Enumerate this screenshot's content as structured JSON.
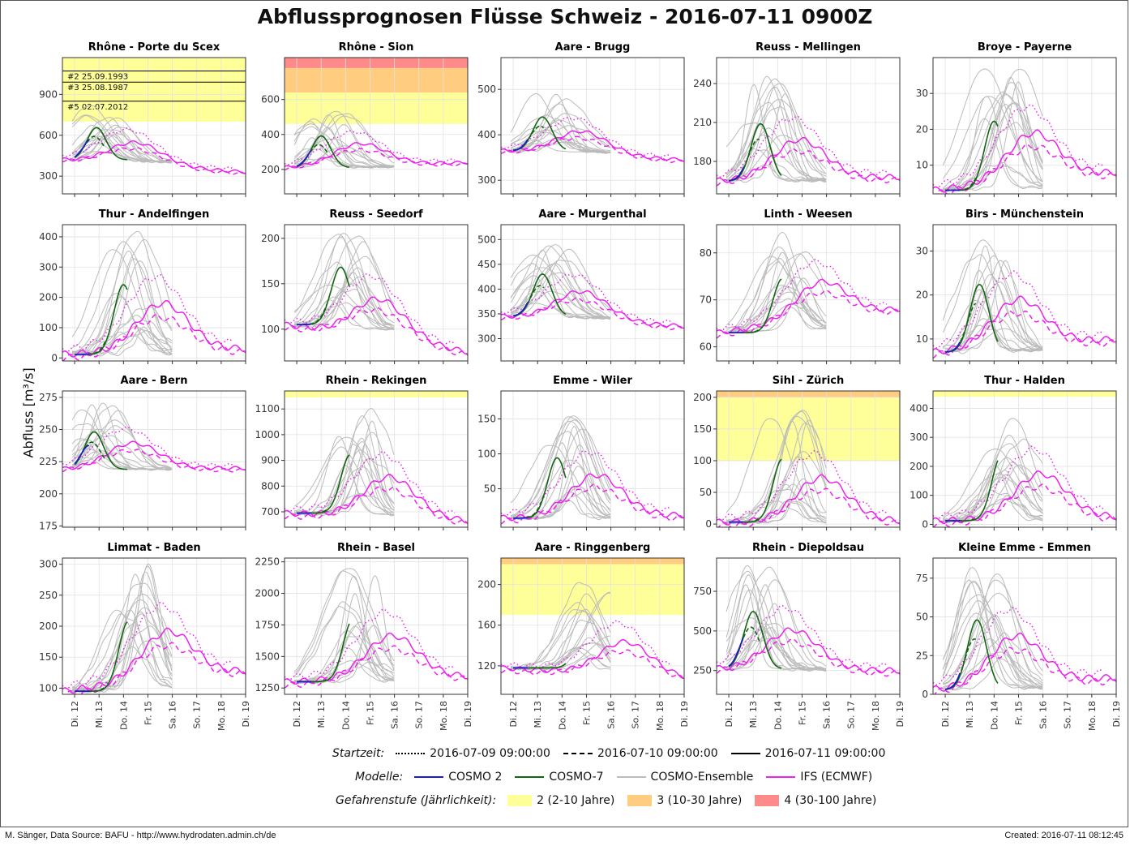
{
  "title": "Abflussprognosen Flüsse Schweiz - 2016-07-11 0900Z",
  "ylabel": "Abfluss [m³/s]",
  "footer": {
    "left": "M. Sänger, Data Source: BAFU - http://www.hydrodaten.admin.ch/de",
    "right": "Created: 2016-07-11 08:12:45"
  },
  "legend": {
    "startzeit": {
      "title": "Startzeit:",
      "items": [
        {
          "label": "2016-07-09 09:00:00",
          "dash": "dotted"
        },
        {
          "label": "2016-07-10 09:00:00",
          "dash": "dashed"
        },
        {
          "label": "2016-07-11 09:00:00",
          "dash": "solid"
        }
      ]
    },
    "modelle": {
      "title": "Modelle:",
      "items": [
        {
          "label": "COSMO 2",
          "color": "#1a1ad4"
        },
        {
          "label": "COSMO-7",
          "color": "#116611"
        },
        {
          "label": "COSMO-Ensemble",
          "color": "#bbbbbb"
        },
        {
          "label": "IFS (ECMWF)",
          "color": "#ee22ee"
        }
      ]
    },
    "gefahr": {
      "title": "Gefahrenstufe (Jährlichkeit):",
      "items": [
        {
          "label": "2 (2-10 Jahre)",
          "color": "#ffff99"
        },
        {
          "label": "3 (10-30 Jahre)",
          "color": "#ffcc80"
        },
        {
          "label": "4 (30-100 Jahre)",
          "color": "#ff8a8a"
        }
      ]
    }
  },
  "colors": {
    "cosmo2": "#1a1ad4",
    "cosmo7": "#116611",
    "ensemble": "#bbbbbb",
    "ifs": "#ee22ee",
    "level2": "#ffff99",
    "level3": "#ffcc80",
    "level4": "#ff8a8a"
  },
  "chart_data": [
    {
      "type": "line",
      "title": "Rhône - Porte du Scex",
      "xlim": [
        11.5,
        19
      ],
      "ylim": [
        170,
        1170
      ],
      "yticks": [
        300,
        600,
        900
      ],
      "bands": [
        {
          "level": 2,
          "from": 700,
          "to": 1170
        }
      ],
      "hlines": [
        {
          "value": 1072,
          "label": "#2 25.09.1993"
        },
        {
          "value": 990,
          "label": "#3 25.08.1987"
        },
        {
          "value": 850,
          "label": "#5 02.07.2012"
        }
      ],
      "peak": 850,
      "base": 420,
      "end": 330,
      "peakAt": 12.9
    },
    {
      "type": "line",
      "title": "Rhône - Sion",
      "xlim": [
        11.5,
        19
      ],
      "ylim": [
        60,
        840
      ],
      "yticks": [
        200,
        400,
        600
      ],
      "bands": [
        {
          "level": 2,
          "from": 460,
          "to": 640
        },
        {
          "level": 3,
          "from": 640,
          "to": 780
        },
        {
          "level": 4,
          "from": 780,
          "to": 840
        }
      ],
      "peak": 540,
      "base": 210,
      "end": 240,
      "peakAt": 13.0
    },
    {
      "type": "line",
      "title": "Aare - Brugg",
      "xlim": [
        11.5,
        19
      ],
      "ylim": [
        270,
        570
      ],
      "yticks": [
        300,
        400,
        500
      ],
      "bands": [],
      "peak": 500,
      "base": 365,
      "end": 345,
      "peakAt": 13.2
    },
    {
      "type": "line",
      "title": "Reuss - Mellingen",
      "xlim": [
        11.5,
        19
      ],
      "ylim": [
        155,
        260
      ],
      "yticks": [
        180,
        210,
        240
      ],
      "bands": [],
      "peak": 245,
      "base": 165,
      "end": 168,
      "peakAt": 13.3
    },
    {
      "type": "line",
      "title": "Broye - Payerne",
      "xlim": [
        11.5,
        19
      ],
      "ylim": [
        2,
        40
      ],
      "yticks": [
        10,
        20,
        30
      ],
      "bands": [],
      "peak": 38,
      "base": 3,
      "end": 8,
      "peakAt": 14.0
    },
    {
      "type": "line",
      "title": "Thur - Andelfingen",
      "xlim": [
        11.5,
        19
      ],
      "ylim": [
        -10,
        440
      ],
      "yticks": [
        0,
        100,
        200,
        300,
        400
      ],
      "bands": [],
      "peak": 430,
      "base": 12,
      "end": 30,
      "peakAt": 14.0
    },
    {
      "type": "line",
      "title": "Reuss - Seedorf",
      "xlim": [
        11.5,
        19
      ],
      "ylim": [
        65,
        215
      ],
      "yticks": [
        100,
        150,
        200
      ],
      "bands": [],
      "peak": 220,
      "base": 105,
      "end": 75,
      "peakAt": 13.8
    },
    {
      "type": "line",
      "title": "Aare - Murgenthal",
      "xlim": [
        11.5,
        19
      ],
      "ylim": [
        255,
        530
      ],
      "yticks": [
        300,
        350,
        400,
        450,
        500
      ],
      "bands": [],
      "peak": 500,
      "base": 345,
      "end": 325,
      "peakAt": 13.2
    },
    {
      "type": "line",
      "title": "Linth - Weesen",
      "xlim": [
        11.5,
        19
      ],
      "ylim": [
        57,
        86
      ],
      "yticks": [
        60,
        70,
        80
      ],
      "bands": [],
      "peak": 84,
      "base": 63,
      "end": 68,
      "peakAt": 14.2
    },
    {
      "type": "line",
      "title": "Birs - Münchenstein",
      "xlim": [
        11.5,
        19
      ],
      "ylim": [
        5,
        36
      ],
      "yticks": [
        10,
        20,
        30
      ],
      "bands": [],
      "peak": 35,
      "base": 7,
      "end": 10,
      "peakAt": 13.4
    },
    {
      "type": "line",
      "title": "Aare - Bern",
      "xlim": [
        11.5,
        19
      ],
      "ylim": [
        174,
        280
      ],
      "yticks": [
        175,
        200,
        225,
        250,
        275
      ],
      "bands": [],
      "peak": 272,
      "base": 219,
      "end": 220,
      "peakAt": 12.8
    },
    {
      "type": "line",
      "title": "Rhein - Rekingen",
      "xlim": [
        11.5,
        19
      ],
      "ylim": [
        640,
        1170
      ],
      "yticks": [
        700,
        800,
        900,
        1000,
        1100
      ],
      "bands": [
        {
          "level": 2,
          "from": 1145,
          "to": 1170
        }
      ],
      "peak": 1110,
      "base": 695,
      "end": 665,
      "peakAt": 14.2
    },
    {
      "type": "line",
      "title": "Emme - Wiler",
      "xlim": [
        11.5,
        19
      ],
      "ylim": [
        -5,
        190
      ],
      "yticks": [
        50,
        100,
        150
      ],
      "bands": [],
      "peak": 165,
      "base": 8,
      "end": 12,
      "peakAt": 13.8
    },
    {
      "type": "line",
      "title": "Sihl - Zürich",
      "xlim": [
        11.5,
        19
      ],
      "ylim": [
        -5,
        210
      ],
      "yticks": [
        0,
        50,
        100,
        150,
        200
      ],
      "bands": [
        {
          "level": 2,
          "from": 100,
          "to": 200
        },
        {
          "level": 3,
          "from": 200,
          "to": 210
        }
      ],
      "peak": 185,
      "base": 3,
      "end": 5,
      "peakAt": 14.2
    },
    {
      "type": "line",
      "title": "Thur - Halden",
      "xlim": [
        11.5,
        19
      ],
      "ylim": [
        -10,
        460
      ],
      "yticks": [
        0,
        100,
        200,
        300,
        400
      ],
      "bands": [
        {
          "level": 2,
          "from": 440,
          "to": 460
        }
      ],
      "peak": 420,
      "base": 12,
      "end": 25,
      "peakAt": 14.3
    },
    {
      "type": "line",
      "title": "Limmat - Baden",
      "xlim": [
        11.5,
        19
      ],
      "ylim": [
        90,
        310
      ],
      "yticks": [
        100,
        150,
        200,
        250,
        300
      ],
      "bands": [],
      "peak": 300,
      "base": 95,
      "end": 128,
      "peakAt": 14.2
    },
    {
      "type": "line",
      "title": "Rhein - Basel",
      "xlim": [
        11.5,
        19
      ],
      "ylim": [
        1200,
        2280
      ],
      "yticks": [
        1250,
        1500,
        1750,
        2000,
        2250
      ],
      "bands": [],
      "peak": 2200,
      "base": 1300,
      "end": 1340,
      "peakAt": 14.3
    },
    {
      "type": "line",
      "title": "Aare - Ringgenberg",
      "xlim": [
        11.5,
        19
      ],
      "ylim": [
        92,
        226
      ],
      "yticks": [
        120,
        160,
        200
      ],
      "bands": [
        {
          "level": 2,
          "from": 170,
          "to": 220
        },
        {
          "level": 3,
          "from": 220,
          "to": 226
        }
      ],
      "peak": 205,
      "base": 118,
      "end": 107,
      "peakAt": 15.0
    },
    {
      "type": "line",
      "title": "Rhein - Diepoldsau",
      "xlim": [
        11.5,
        19
      ],
      "ylim": [
        100,
        960
      ],
      "yticks": [
        250,
        500,
        750
      ],
      "bands": [],
      "peak": 920,
      "base": 260,
      "end": 250,
      "peakAt": 13.0
    },
    {
      "type": "line",
      "title": "Kleine Emme - Emmen",
      "xlim": [
        11.5,
        19
      ],
      "ylim": [
        0,
        88
      ],
      "yticks": [
        0,
        25,
        50,
        75
      ],
      "bands": [],
      "peak": 85,
      "base": 3,
      "end": 11,
      "peakAt": 13.3
    }
  ],
  "xticks": [
    "Di. 12",
    "Mi. 13",
    "Do. 14",
    "Fr. 15",
    "Sa. 16",
    "So. 17",
    "Mo. 18",
    "Di. 19"
  ]
}
